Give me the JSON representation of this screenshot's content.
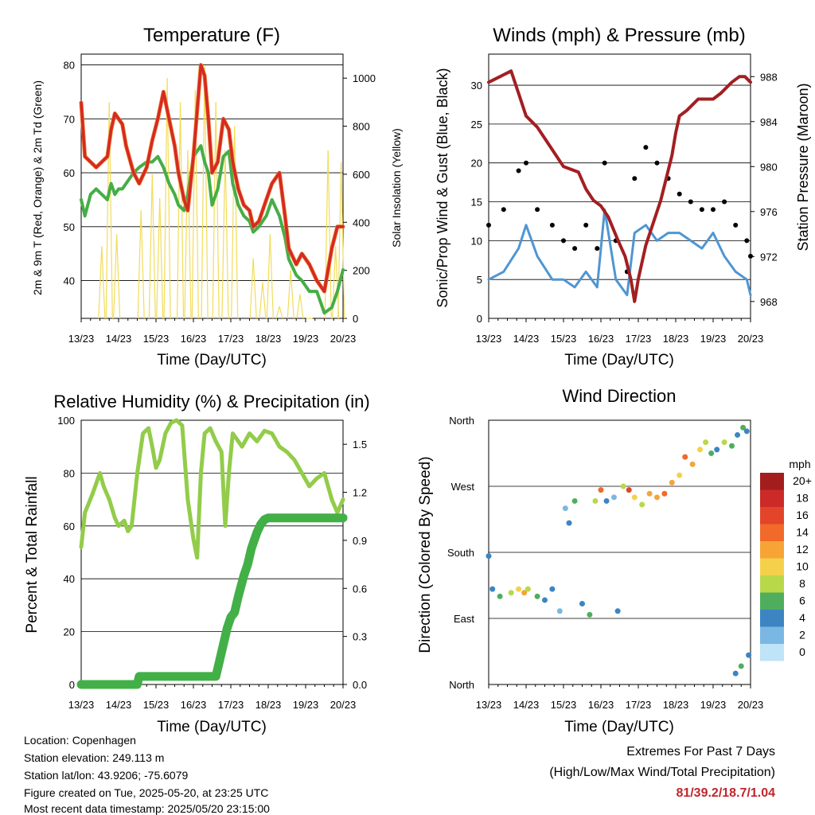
{
  "x_tick_labels": [
    "13/23",
    "14/23",
    "15/23",
    "16/23",
    "17/23",
    "18/23",
    "19/23",
    "20/23"
  ],
  "x_axis_label": "Time (Day/UTC)",
  "temperature": {
    "title": "Temperature (F)",
    "ylabel_left": "2m & 9m T (Red, Orange) & 2m Td (Green)",
    "ylabel_right": "Solar Insolation (Yellow)",
    "y_ticks_left": [
      40,
      50,
      60,
      70,
      80
    ],
    "y_ticks_right": [
      0,
      200,
      400,
      600,
      800,
      1000
    ]
  },
  "winds": {
    "title": "Winds (mph) & Pressure (mb)",
    "ylabel_left": "Sonic/Prop Wind & Gust (Blue, Black)",
    "ylabel_right": "Station Pressure (Maroon)",
    "y_ticks_left": [
      0,
      5,
      10,
      15,
      20,
      25,
      30
    ],
    "y_ticks_right": [
      968,
      972,
      976,
      980,
      984,
      988
    ]
  },
  "humidity": {
    "title": "Relative Humidity (%) & Precipitation (in)",
    "ylabel_left": "Percent & Total Rainfall",
    "y_ticks_left": [
      0,
      20,
      40,
      60,
      80,
      100
    ],
    "y_ticks_right": [
      "0.0",
      "0.3",
      "0.6",
      "0.9",
      "1.2",
      "1.5"
    ]
  },
  "direction": {
    "title": "Wind Direction",
    "ylabel_left": "Direction (Colored By Speed)",
    "y_ticks": [
      "North",
      "East",
      "South",
      "West",
      "North"
    ],
    "legend_title": "mph",
    "legend_labels": [
      "20+",
      "18",
      "16",
      "14",
      "12",
      "10",
      "8",
      "6",
      "4",
      "2",
      "0"
    ],
    "legend_colors": [
      "#a31d1d",
      "#cc2a27",
      "#e2452a",
      "#f26a2a",
      "#f6a436",
      "#f5d14b",
      "#b8d84a",
      "#4fae5e",
      "#3c85c2",
      "#7ab8e3",
      "#bfe3f7"
    ]
  },
  "info": {
    "location": "Location: Copenhagen",
    "elevation": "Station elevation: 249.113 m",
    "latlon": "Station lat/lon: 43.9206; -75.6079",
    "created": "Figure created on Tue, 2025-05-20, at 23:25 UTC",
    "recent": "Most recent data timestamp: 2025/05/20 23:15:00"
  },
  "extremes": {
    "title": "Extremes For Past 7 Days",
    "subtitle": "(High/Low/Max Wind/Total Precipitation)",
    "values": "81/39.2/18.7/1.04"
  },
  "colors": {
    "temp_2m": "#d42a26",
    "temp_9m": "#f07a22",
    "dewpoint": "#46ad46",
    "solar": "#f2dc5a",
    "wind_blue": "#4f96d2",
    "gust_black": "#000000",
    "pressure": "#a21f22",
    "rh": "#92cc4a",
    "precip": "#42b046",
    "extremes_text": "#c0262d"
  },
  "chart_data": [
    {
      "type": "line",
      "title": "Temperature (F)",
      "xlabel": "Time (Day/UTC)",
      "ylabel": "2m & 9m T (Red, Orange) & 2m Td (Green)",
      "y2label": "Solar Insolation (Yellow)",
      "x_range": [
        0,
        7
      ],
      "ylim": [
        33,
        82
      ],
      "y2lim": [
        0,
        1100
      ],
      "series": [
        {
          "name": "2m & 9m T (Red, Orange)",
          "axis": "left",
          "x": [
            0,
            0.1,
            0.25,
            0.4,
            0.55,
            0.7,
            0.8,
            0.9,
            1.0,
            1.1,
            1.2,
            1.4,
            1.55,
            1.75,
            1.9,
            2.05,
            2.2,
            2.35,
            2.5,
            2.6,
            2.75,
            2.85,
            3.0,
            3.2,
            3.3,
            3.4,
            3.5,
            3.65,
            3.8,
            3.95,
            4.05,
            4.2,
            4.35,
            4.5,
            4.6,
            4.75,
            4.95,
            5.1,
            5.3,
            5.45,
            5.55,
            5.75,
            5.9,
            6.1,
            6.3,
            6.5,
            6.7,
            6.85,
            7.0
          ],
          "y": [
            73,
            63,
            62,
            61,
            62,
            63,
            68,
            71,
            70,
            69,
            65,
            60,
            58,
            61,
            66,
            70,
            75,
            70,
            65,
            60,
            55,
            53,
            63,
            80,
            78,
            70,
            60,
            62,
            70,
            68,
            62,
            57,
            54,
            53,
            50,
            51,
            55,
            58,
            60,
            52,
            46,
            43,
            45,
            43,
            40,
            38,
            46,
            50,
            50
          ]
        },
        {
          "name": "2m Td (Green)",
          "axis": "left",
          "x": [
            0,
            0.1,
            0.25,
            0.4,
            0.55,
            0.7,
            0.8,
            0.9,
            1.0,
            1.1,
            1.2,
            1.4,
            1.55,
            1.75,
            1.9,
            2.05,
            2.2,
            2.35,
            2.5,
            2.6,
            2.75,
            2.85,
            3.0,
            3.2,
            3.3,
            3.4,
            3.5,
            3.65,
            3.8,
            3.95,
            4.05,
            4.2,
            4.35,
            4.5,
            4.6,
            4.75,
            4.95,
            5.1,
            5.3,
            5.45,
            5.55,
            5.75,
            5.9,
            6.1,
            6.3,
            6.5,
            6.7,
            6.85,
            7.0
          ],
          "y": [
            55,
            52,
            56,
            57,
            56,
            55,
            58,
            56,
            57,
            57,
            58,
            60,
            61,
            62,
            62,
            63,
            61,
            58,
            56,
            54,
            53,
            56,
            63,
            65,
            62,
            60,
            54,
            57,
            63,
            64,
            58,
            54,
            52,
            51,
            49,
            50,
            52,
            55,
            52,
            48,
            44,
            41,
            40,
            38,
            38,
            34,
            35,
            38,
            42
          ]
        },
        {
          "name": "Solar Insolation (Yellow)",
          "axis": "right",
          "x": [
            0.55,
            0.75,
            0.95,
            1.6,
            1.9,
            2.1,
            2.3,
            2.65,
            2.85,
            3.05,
            3.3,
            3.6,
            3.85,
            4.1,
            4.6,
            4.85,
            5.05,
            5.3,
            5.6,
            5.85,
            6.1,
            6.6,
            6.8,
            6.95
          ],
          "y": [
            300,
            900,
            350,
            450,
            600,
            500,
            1000,
            900,
            700,
            950,
            1050,
            900,
            700,
            800,
            250,
            150,
            350,
            50,
            200,
            100,
            0,
            700,
            300,
            650
          ]
        }
      ]
    },
    {
      "type": "scatter",
      "title": "Winds (mph) & Pressure (mb)",
      "xlabel": "Time (Day/UTC)",
      "ylabel": "Sonic/Prop Wind & Gust (Blue, Black)",
      "y2label": "Station Pressure (Maroon)",
      "x_range": [
        0,
        7
      ],
      "ylim": [
        0,
        34
      ],
      "y2lim": [
        966.5,
        990
      ],
      "series": [
        {
          "name": "Sonic/Prop Wind (Blue)",
          "axis": "left",
          "x": [
            0,
            0.4,
            0.8,
            1.0,
            1.3,
            1.7,
            2.0,
            2.3,
            2.6,
            2.9,
            3.1,
            3.4,
            3.7,
            3.9,
            4.2,
            4.5,
            4.8,
            5.1,
            5.4,
            5.7,
            6.0,
            6.3,
            6.6,
            6.9,
            7.0
          ],
          "y": [
            5,
            6,
            9,
            12,
            8,
            5,
            5,
            4,
            6,
            4,
            14,
            5,
            3,
            11,
            12,
            10,
            11,
            11,
            10,
            9,
            11,
            8,
            6,
            5,
            3
          ]
        },
        {
          "name": "Gust (Black)",
          "axis": "left",
          "x": [
            0,
            0.4,
            0.8,
            1.0,
            1.3,
            1.7,
            2.0,
            2.3,
            2.6,
            2.9,
            3.1,
            3.4,
            3.7,
            3.9,
            4.2,
            4.5,
            4.8,
            5.1,
            5.4,
            5.7,
            6.0,
            6.3,
            6.6,
            6.9,
            7.0
          ],
          "y": [
            12,
            14,
            19,
            20,
            14,
            12,
            10,
            9,
            12,
            9,
            20,
            10,
            6,
            18,
            22,
            20,
            18,
            16,
            15,
            14,
            14,
            15,
            12,
            10,
            8
          ]
        },
        {
          "name": "Station Pressure (Maroon)",
          "axis": "right",
          "x": [
            0,
            0.3,
            0.6,
            0.8,
            1.0,
            1.3,
            1.6,
            2.0,
            2.4,
            2.6,
            2.8,
            3.0,
            3.2,
            3.45,
            3.65,
            3.8,
            3.9,
            4.0,
            4.2,
            4.6,
            4.9,
            5.0,
            5.1,
            5.3,
            5.6,
            6.0,
            6.2,
            6.5,
            6.7,
            6.85,
            7.0
          ],
          "y": [
            987.5,
            988,
            988.5,
            986.5,
            984.5,
            983.5,
            982,
            980,
            979.5,
            978,
            977,
            976.5,
            975.5,
            973.5,
            972,
            970,
            968,
            970,
            973,
            977,
            981,
            983,
            984.5,
            985,
            986,
            986,
            986.5,
            987.5,
            988,
            988,
            987.5
          ]
        }
      ]
    },
    {
      "type": "line",
      "title": "Relative Humidity (%) & Precipitation (in)",
      "xlabel": "Time (Day/UTC)",
      "ylabel": "Percent & Total Rainfall",
      "x_range": [
        0,
        7
      ],
      "ylim": [
        0,
        100
      ],
      "y2lim": [
        0,
        1.65
      ],
      "series": [
        {
          "name": "Relative Humidity",
          "axis": "left",
          "x": [
            0,
            0.1,
            0.3,
            0.5,
            0.6,
            0.75,
            0.9,
            1.0,
            1.15,
            1.25,
            1.35,
            1.5,
            1.65,
            1.8,
            1.9,
            2.0,
            2.1,
            2.25,
            2.4,
            2.55,
            2.7,
            2.85,
            3.0,
            3.1,
            3.2,
            3.3,
            3.45,
            3.6,
            3.75,
            3.85,
            3.95,
            4.05,
            4.15,
            4.3,
            4.5,
            4.7,
            4.9,
            5.1,
            5.3,
            5.5,
            5.7,
            5.9,
            6.1,
            6.3,
            6.5,
            6.7,
            6.85,
            7.0
          ],
          "y": [
            52,
            65,
            72,
            80,
            75,
            70,
            63,
            60,
            62,
            58,
            60,
            80,
            95,
            97,
            90,
            82,
            85,
            95,
            99,
            100,
            98,
            70,
            55,
            48,
            80,
            95,
            97,
            92,
            88,
            60,
            80,
            95,
            93,
            90,
            95,
            92,
            96,
            95,
            90,
            88,
            85,
            80,
            75,
            78,
            80,
            70,
            65,
            70
          ]
        },
        {
          "name": "Total Rainfall",
          "axis": "right",
          "x": [
            0,
            1.5,
            1.55,
            3.6,
            3.65,
            3.75,
            3.85,
            3.9,
            4.0,
            4.1,
            4.2,
            4.35,
            4.45,
            4.55,
            4.7,
            4.8,
            4.9,
            5.0,
            7.0
          ],
          "y": [
            0,
            0,
            0.05,
            0.05,
            0.1,
            0.2,
            0.3,
            0.35,
            0.42,
            0.45,
            0.55,
            0.68,
            0.75,
            0.85,
            0.95,
            1.0,
            1.03,
            1.04,
            1.04
          ]
        }
      ]
    },
    {
      "type": "scatter",
      "title": "Wind Direction",
      "xlabel": "Time (Day/UTC)",
      "ylabel": "Direction (Colored By Speed)",
      "x_range": [
        0,
        7
      ],
      "y_categories": [
        "North",
        "East",
        "South",
        "West",
        "North"
      ],
      "color_by": "speed (mph)",
      "points": [
        {
          "x": 0.0,
          "dir": 175,
          "speed": 4
        },
        {
          "x": 0.1,
          "dir": 130,
          "speed": 4
        },
        {
          "x": 0.3,
          "dir": 120,
          "speed": 6
        },
        {
          "x": 0.6,
          "dir": 125,
          "speed": 8
        },
        {
          "x": 0.8,
          "dir": 130,
          "speed": 10
        },
        {
          "x": 0.95,
          "dir": 125,
          "speed": 12
        },
        {
          "x": 1.05,
          "dir": 130,
          "speed": 8
        },
        {
          "x": 1.3,
          "dir": 120,
          "speed": 6
        },
        {
          "x": 1.5,
          "dir": 115,
          "speed": 4
        },
        {
          "x": 1.7,
          "dir": 130,
          "speed": 4
        },
        {
          "x": 1.9,
          "dir": 100,
          "speed": 2
        },
        {
          "x": 2.05,
          "dir": 240,
          "speed": 2
        },
        {
          "x": 2.15,
          "dir": 220,
          "speed": 4
        },
        {
          "x": 2.3,
          "dir": 250,
          "speed": 6
        },
        {
          "x": 2.5,
          "dir": 110,
          "speed": 4
        },
        {
          "x": 2.7,
          "dir": 95,
          "speed": 6
        },
        {
          "x": 2.85,
          "dir": 250,
          "speed": 8
        },
        {
          "x": 3.0,
          "dir": 265,
          "speed": 14
        },
        {
          "x": 3.15,
          "dir": 250,
          "speed": 4
        },
        {
          "x": 3.35,
          "dir": 255,
          "speed": 2
        },
        {
          "x": 3.45,
          "dir": 100,
          "speed": 4
        },
        {
          "x": 3.6,
          "dir": 270,
          "speed": 8
        },
        {
          "x": 3.75,
          "dir": 265,
          "speed": 16
        },
        {
          "x": 3.9,
          "dir": 255,
          "speed": 10
        },
        {
          "x": 4.1,
          "dir": 245,
          "speed": 8
        },
        {
          "x": 4.3,
          "dir": 260,
          "speed": 12
        },
        {
          "x": 4.5,
          "dir": 255,
          "speed": 12
        },
        {
          "x": 4.7,
          "dir": 260,
          "speed": 14
        },
        {
          "x": 4.9,
          "dir": 275,
          "speed": 12
        },
        {
          "x": 5.1,
          "dir": 285,
          "speed": 10
        },
        {
          "x": 5.25,
          "dir": 310,
          "speed": 14
        },
        {
          "x": 5.45,
          "dir": 300,
          "speed": 12
        },
        {
          "x": 5.65,
          "dir": 320,
          "speed": 10
        },
        {
          "x": 5.8,
          "dir": 330,
          "speed": 8
        },
        {
          "x": 5.95,
          "dir": 315,
          "speed": 6
        },
        {
          "x": 6.1,
          "dir": 320,
          "speed": 4
        },
        {
          "x": 6.3,
          "dir": 330,
          "speed": 8
        },
        {
          "x": 6.5,
          "dir": 325,
          "speed": 6
        },
        {
          "x": 6.65,
          "dir": 340,
          "speed": 4
        },
        {
          "x": 6.8,
          "dir": 350,
          "speed": 6
        },
        {
          "x": 6.9,
          "dir": 345,
          "speed": 4
        },
        {
          "x": 6.6,
          "dir": 15,
          "speed": 4
        },
        {
          "x": 6.75,
          "dir": 25,
          "speed": 6
        },
        {
          "x": 6.95,
          "dir": 40,
          "speed": 4
        }
      ]
    }
  ]
}
